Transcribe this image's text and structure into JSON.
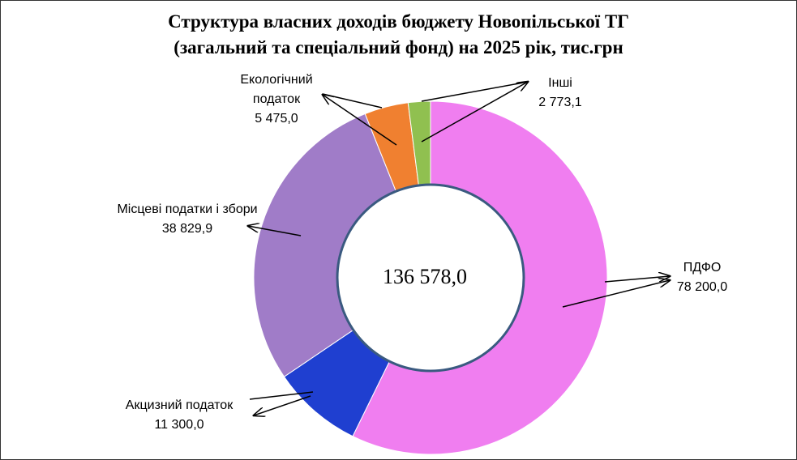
{
  "chart_data": {
    "type": "donut",
    "title": "Структура  власних доходів бюджету Новопільської ТГ\n(загальний  та  спеціальний  фонд)  на 2025 рік, тис.грн",
    "categories": [
      "ПДФО",
      "Акцизний податок",
      "Місцеві податки і збори",
      "Екологічний податок",
      "Інші"
    ],
    "values": [
      78200.0,
      11300.0,
      38829.9,
      5475.0,
      2773.1
    ],
    "value_labels": [
      "78 200,0",
      "11 300,0",
      "38 829,9",
      "5 475,0",
      "2 773,1"
    ],
    "colors": [
      "#f07ef0",
      "#1f3fd0",
      "#a07cc8",
      "#f08030",
      "#90c050"
    ],
    "total": {
      "value": 136578.0,
      "label": "136 578,0"
    }
  }
}
